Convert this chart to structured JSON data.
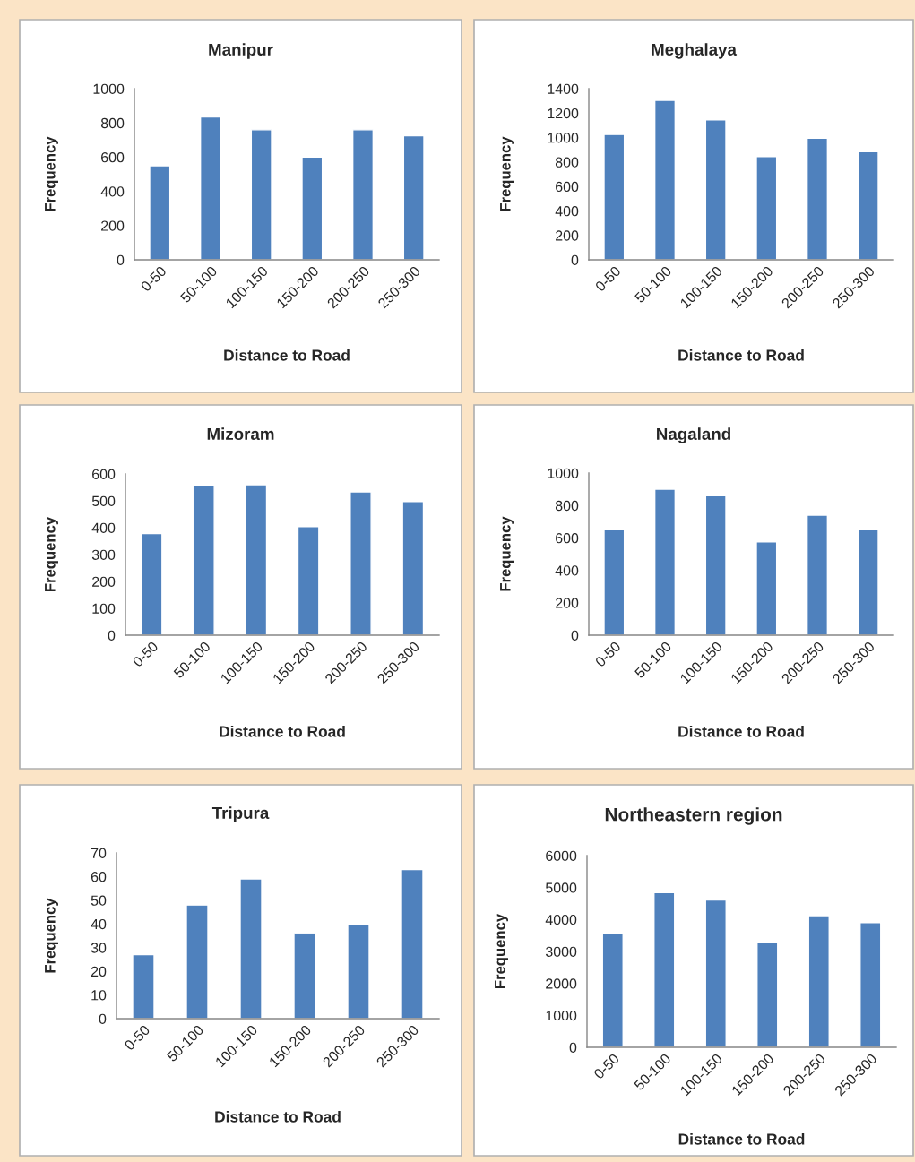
{
  "chart_data": [
    {
      "type": "bar",
      "title": "Manipur",
      "xlabel": "Distance to Road",
      "ylabel": "Frequency",
      "categories": [
        "0-50",
        "50-100",
        "100-150",
        "150-200",
        "200-250",
        "250-300"
      ],
      "values": [
        550,
        835,
        760,
        600,
        760,
        725
      ],
      "color": "#4f81bd",
      "ylim": [
        0,
        1000
      ],
      "yticks": [
        0,
        200,
        400,
        600,
        800,
        1000
      ]
    },
    {
      "type": "bar",
      "title": "Meghalaya",
      "xlabel": "Distance to Road",
      "ylabel": "Frequency",
      "categories": [
        "0-50",
        "50-100",
        "100-150",
        "150-200",
        "200-250",
        "250-300"
      ],
      "values": [
        1025,
        1305,
        1145,
        845,
        995,
        885
      ],
      "color": "#4f81bd",
      "ylim": [
        0,
        1400
      ],
      "yticks": [
        0,
        200,
        400,
        600,
        800,
        1000,
        1200,
        1400
      ]
    },
    {
      "type": "bar",
      "title": "Mizoram",
      "xlabel": "Distance to Road",
      "ylabel": "Frequency",
      "categories": [
        "0-50",
        "50-100",
        "100-150",
        "150-200",
        "200-250",
        "250-300"
      ],
      "values": [
        378,
        557,
        560,
        404,
        533,
        497
      ],
      "color": "#4f81bd",
      "ylim": [
        0,
        600
      ],
      "yticks": [
        0,
        100,
        200,
        300,
        400,
        500,
        600
      ]
    },
    {
      "type": "bar",
      "title": "Nagaland",
      "xlabel": "Distance to Road",
      "ylabel": "Frequency",
      "categories": [
        "0-50",
        "50-100",
        "100-150",
        "150-200",
        "200-250",
        "250-300"
      ],
      "values": [
        650,
        900,
        860,
        575,
        740,
        650
      ],
      "color": "#4f81bd",
      "ylim": [
        0,
        1000
      ],
      "yticks": [
        0,
        200,
        400,
        600,
        800,
        1000
      ]
    },
    {
      "type": "bar",
      "title": "Tripura",
      "xlabel": "Distance to Road",
      "ylabel": "Frequency",
      "categories": [
        "0-50",
        "50-100",
        "100-150",
        "150-200",
        "200-250",
        "250-300"
      ],
      "values": [
        27,
        48,
        59,
        36,
        40,
        63
      ],
      "color": "#4f81bd",
      "ylim": [
        0,
        70
      ],
      "yticks": [
        0,
        10,
        20,
        30,
        40,
        50,
        60,
        70
      ]
    },
    {
      "type": "bar",
      "title": "Northeastern region",
      "xlabel": "Distance to Road",
      "ylabel": "Frequency",
      "categories": [
        "0-50",
        "50-100",
        "100-150",
        "150-200",
        "200-250",
        "250-300"
      ],
      "values": [
        3560,
        4840,
        4610,
        3300,
        4120,
        3900
      ],
      "color": "#4f81bd",
      "ylim": [
        0,
        6000
      ],
      "yticks": [
        0,
        1000,
        2000,
        3000,
        4000,
        5000,
        6000
      ]
    }
  ]
}
